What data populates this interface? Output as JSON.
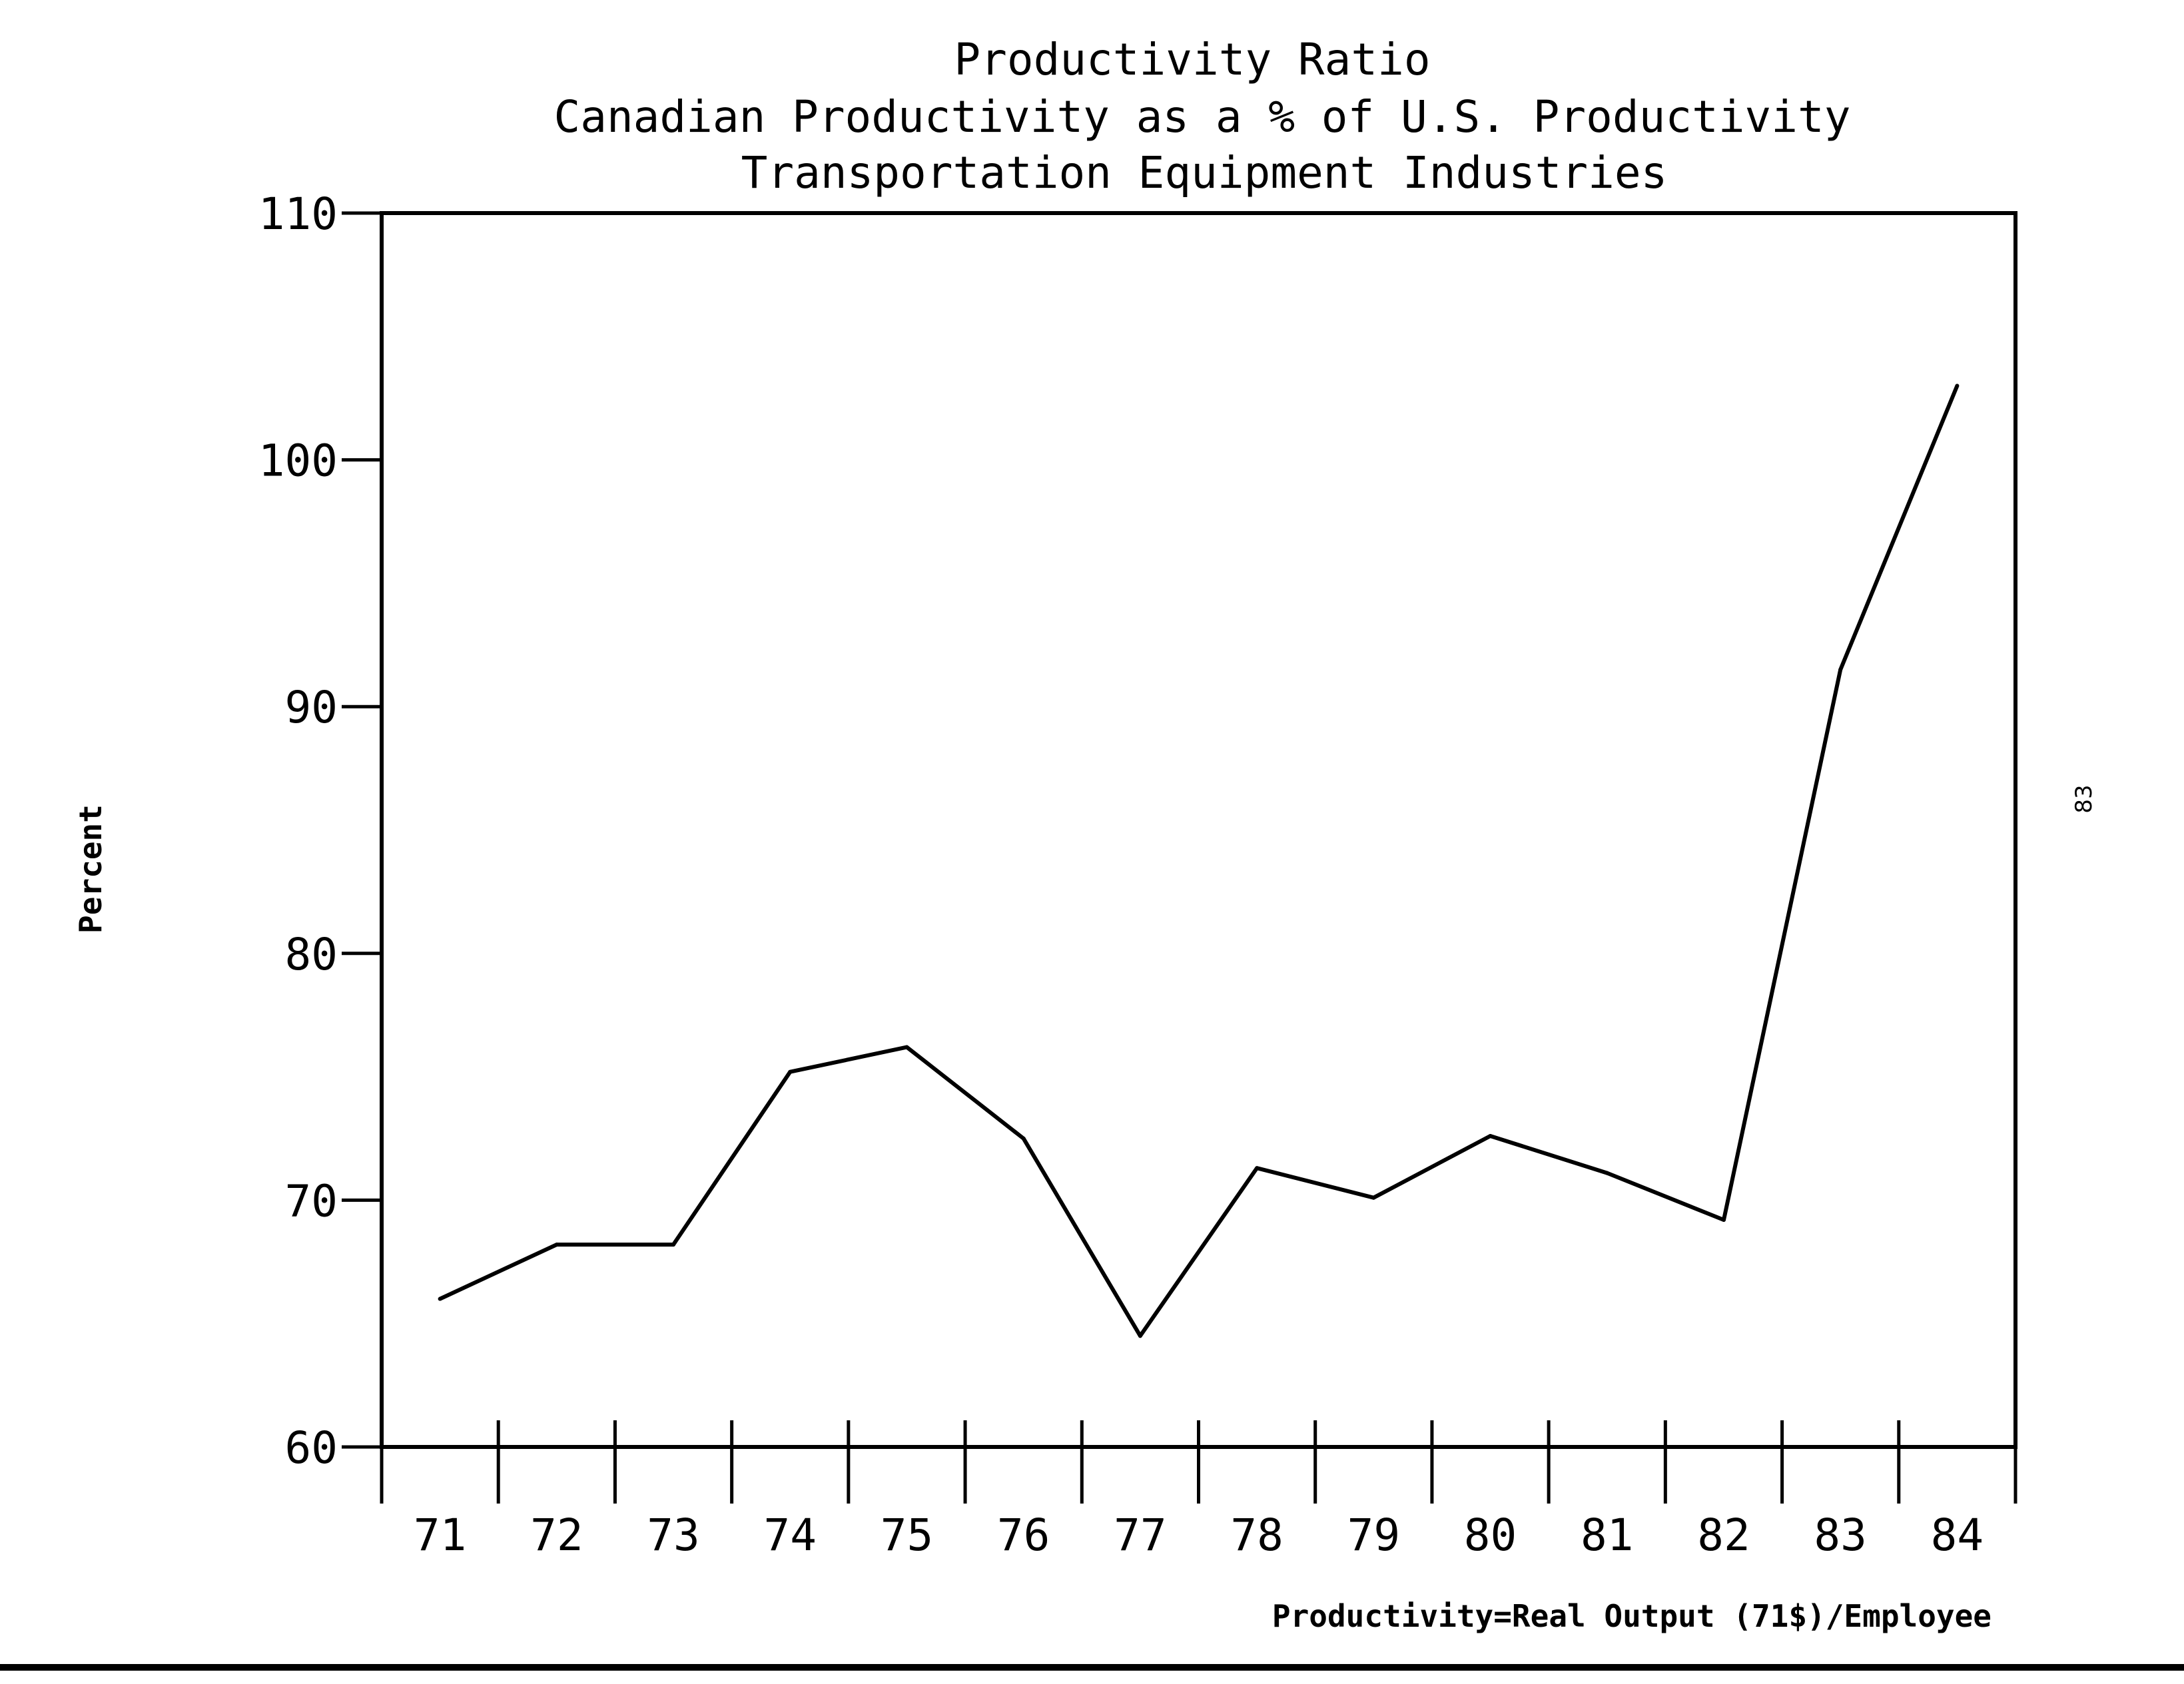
{
  "chart_data": {
    "type": "line",
    "title": "Productivity Ratio",
    "subtitle_1": "Canadian Productivity as a % of U.S. Productivity",
    "subtitle_2": "Transportation Equipment Industries",
    "ylabel": "Percent",
    "xlabel": "Productivity=Real Output (71$)/Employee",
    "ylim": [
      60,
      110
    ],
    "yticks": [
      "60",
      "70",
      "80",
      "90",
      "100",
      "110"
    ],
    "categories": [
      "71",
      "72",
      "73",
      "74",
      "75",
      "76",
      "77",
      "78",
      "79",
      "80",
      "81",
      "82",
      "83",
      "84"
    ],
    "values": [
      66.0,
      68.2,
      68.2,
      75.2,
      76.2,
      72.5,
      64.5,
      71.3,
      70.1,
      72.6,
      71.1,
      69.2,
      91.5,
      103.0
    ],
    "grid": false,
    "line_color": "#000000"
  },
  "page_number": "83"
}
